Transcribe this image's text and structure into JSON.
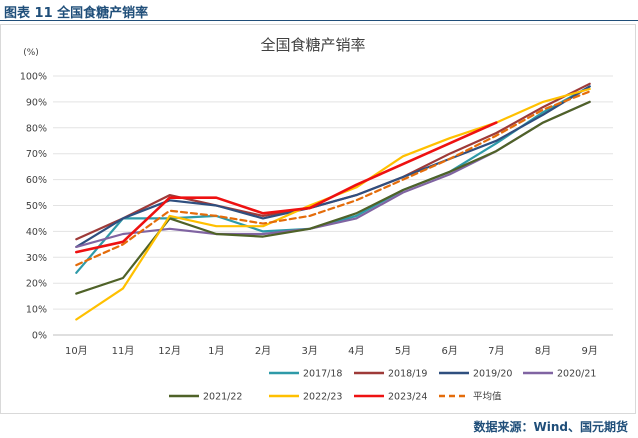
{
  "figure_caption": "图表 11  全国食糖产销率",
  "source_text": "数据来源：Wind、国元期货",
  "chart_data": {
    "type": "line",
    "title": "全国食糖产销率",
    "unit_label": "(%)",
    "categories": [
      "10月",
      "11月",
      "12月",
      "1月",
      "2月",
      "3月",
      "4月",
      "5月",
      "6月",
      "7月",
      "8月",
      "9月"
    ],
    "y_ticks": [
      "0%",
      "10%",
      "20%",
      "30%",
      "40%",
      "50%",
      "60%",
      "70%",
      "80%",
      "90%",
      "100%"
    ],
    "ylim": [
      0,
      100
    ],
    "grid": "horizontal",
    "legend_position": "bottom",
    "series": [
      {
        "name": "2017/18",
        "color": "#2e9aa8",
        "dashed": false,
        "values": [
          24,
          45,
          45,
          46,
          40,
          41,
          46,
          56,
          63,
          74,
          86,
          96
        ]
      },
      {
        "name": "2018/19",
        "color": "#9e3a38",
        "dashed": false,
        "values": [
          37,
          45,
          54,
          50,
          46,
          49,
          54,
          61,
          70,
          78,
          88,
          97
        ]
      },
      {
        "name": "2019/20",
        "color": "#2f4f7f",
        "dashed": false,
        "values": [
          34,
          45,
          52,
          50,
          45,
          49,
          54,
          61,
          68,
          75,
          85,
          96
        ]
      },
      {
        "name": "2020/21",
        "color": "#8064a2",
        "dashed": false,
        "values": [
          34,
          39,
          41,
          39,
          39,
          41,
          45,
          55,
          62,
          71,
          82,
          90
        ]
      },
      {
        "name": "2021/22",
        "color": "#4f6228",
        "dashed": false,
        "values": [
          16,
          22,
          45,
          39,
          38,
          41,
          47,
          56,
          63,
          71,
          82,
          90
        ]
      },
      {
        "name": "2022/23",
        "color": "#ffc000",
        "dashed": false,
        "values": [
          6,
          18,
          46,
          42,
          42,
          50,
          57,
          69,
          76,
          82,
          90,
          95
        ]
      },
      {
        "name": "2023/24",
        "color": "#ee1111",
        "dashed": false,
        "values": [
          32,
          36,
          53,
          53,
          47,
          49,
          58,
          66,
          74,
          82,
          null,
          null
        ]
      },
      {
        "name": "平均值",
        "color": "#e46c0a",
        "dashed": true,
        "values": [
          27,
          35,
          48,
          46,
          43,
          46,
          52,
          60,
          68,
          77,
          87,
          94
        ]
      }
    ]
  }
}
